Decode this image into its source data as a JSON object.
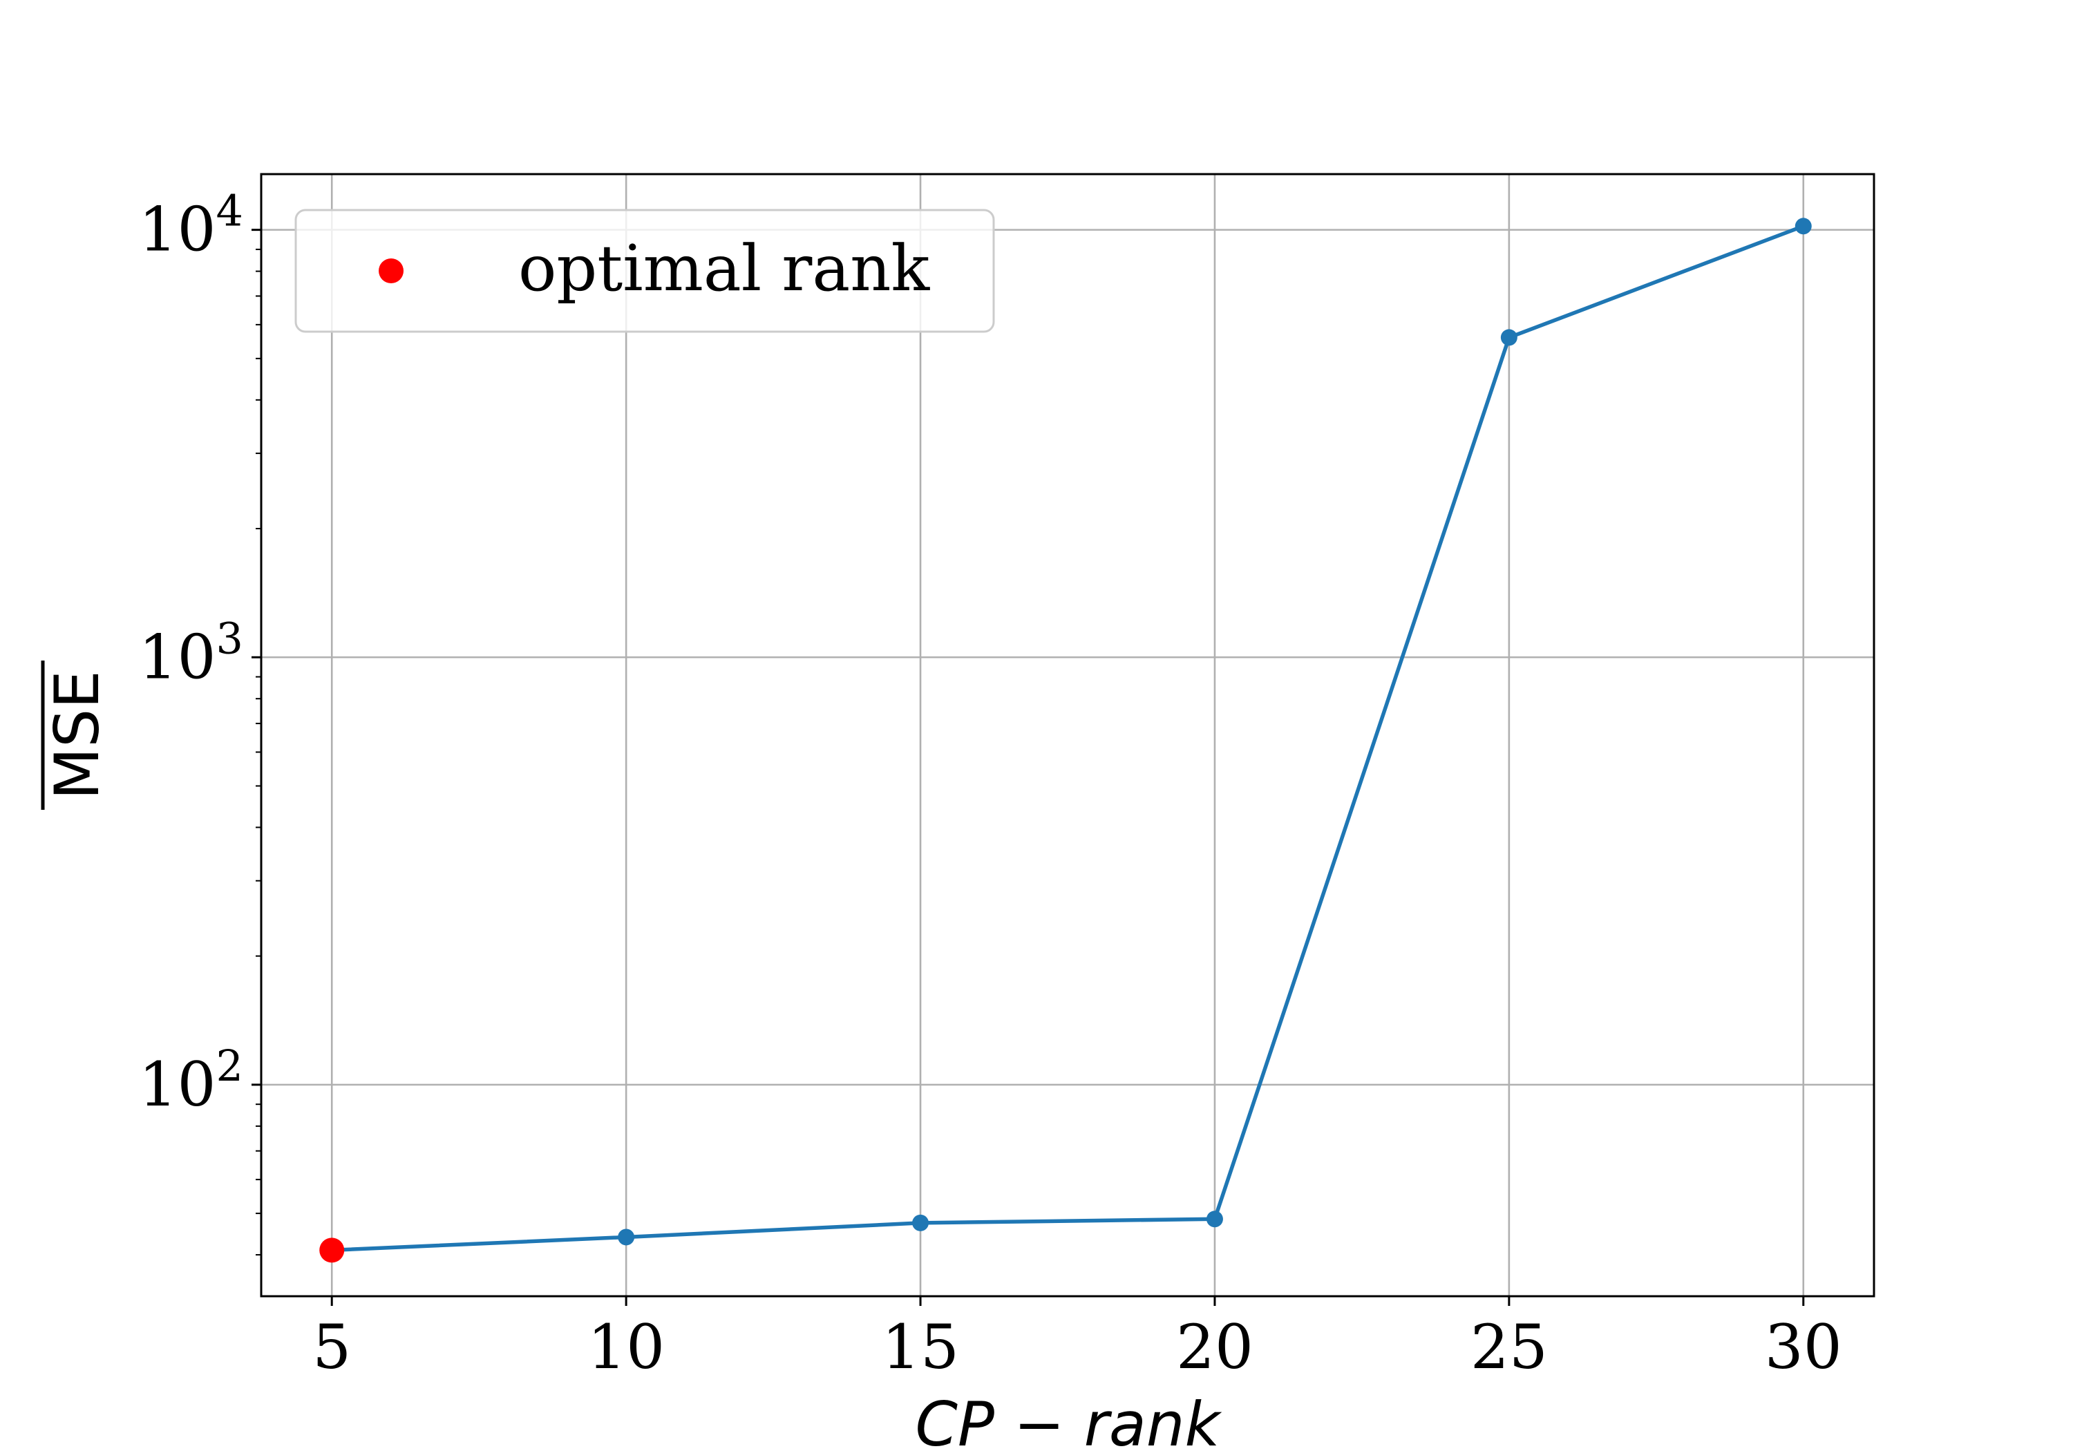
{
  "chart_data": {
    "type": "line",
    "x": [
      5,
      10,
      15,
      20,
      25,
      30
    ],
    "series": [
      {
        "values": [
          41,
          44,
          47.5,
          48.5,
          5600,
          10200
        ],
        "color": "#1f77b4"
      }
    ],
    "highlight": {
      "x": 5,
      "y": 41,
      "color": "#ff0000",
      "label": "optimal rank"
    },
    "xlabel": "CP − rank",
    "ylabel": "MSE",
    "ylabel_overline": true,
    "xlim": [
      3.8,
      31.2
    ],
    "ylim": [
      32,
      13500
    ],
    "yscale": "log",
    "xticks": [
      5,
      10,
      15,
      20,
      25,
      30
    ],
    "yticks": [
      {
        "value": 100,
        "base": "10",
        "exp": "2"
      },
      {
        "value": 1000,
        "base": "10",
        "exp": "3"
      },
      {
        "value": 10000,
        "base": "10",
        "exp": "4"
      }
    ],
    "grid": true,
    "legend_position": "top-left"
  }
}
